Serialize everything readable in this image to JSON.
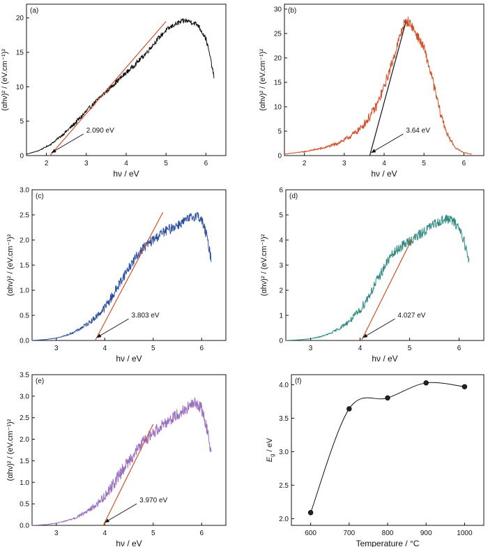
{
  "chart_data": [
    {
      "panel": "(a)",
      "type": "line",
      "xlabel": "hν / eV",
      "ylabel": "(αhν)² / (eV.cm⁻¹)²",
      "xlim": [
        1.5,
        6.5
      ],
      "ylim": [
        0,
        22
      ],
      "xticks": [
        2,
        3,
        4,
        5,
        6
      ],
      "yticks": [
        0,
        5,
        10,
        15,
        20
      ],
      "color": "#111111",
      "spectrum": {
        "x": [
          1.5,
          1.8,
          2.1,
          2.4,
          2.7,
          3.0,
          3.3,
          3.6,
          3.9,
          4.2,
          4.5,
          4.8,
          5.0,
          5.2,
          5.4,
          5.5,
          5.6,
          5.8,
          6.0,
          6.1,
          6.2
        ],
        "y": [
          0.2,
          0.7,
          1.6,
          3.0,
          4.6,
          6.4,
          8.2,
          9.9,
          11.5,
          13.1,
          14.9,
          17.0,
          18.2,
          19.0,
          19.5,
          19.6,
          19.5,
          19.0,
          17.0,
          14.5,
          11.5
        ],
        "noise": 0.35
      },
      "fit": {
        "x": [
          2.09,
          5.0
        ],
        "y": [
          0,
          19.5
        ],
        "color": "#d2502a"
      },
      "annotation": {
        "label": "2.090 eV",
        "value": 2.09
      }
    },
    {
      "panel": "(b)",
      "type": "line",
      "xlabel": "hν / eV",
      "ylabel": "(αhν)² / (eV.cm⁻¹)²",
      "xlim": [
        1.5,
        6.5
      ],
      "ylim": [
        0,
        31
      ],
      "xticks": [
        2,
        3,
        4,
        5,
        6
      ],
      "yticks": [
        0,
        5,
        10,
        15,
        20,
        25,
        30
      ],
      "color": "#d2502a",
      "spectrum": {
        "x": [
          1.5,
          2.0,
          2.5,
          2.8,
          3.0,
          3.2,
          3.4,
          3.6,
          3.8,
          4.0,
          4.2,
          4.4,
          4.5,
          4.6,
          4.7,
          4.8,
          5.0,
          5.2,
          5.4,
          5.6,
          5.8,
          6.0,
          6.2
        ],
        "y": [
          0.3,
          0.8,
          1.6,
          2.4,
          3.2,
          4.2,
          5.5,
          7.5,
          10.0,
          14.0,
          19.0,
          24.5,
          27.0,
          27.5,
          26.5,
          25.0,
          22.0,
          16.0,
          9.0,
          4.0,
          1.5,
          0.6,
          0.3
        ],
        "noise": 1.0
      },
      "fit": {
        "x": [
          3.64,
          4.55
        ],
        "y": [
          0,
          27.5
        ],
        "color": "#111111"
      },
      "annotation": {
        "label": "3.64 eV",
        "value": 3.64
      }
    },
    {
      "panel": "(c)",
      "type": "line",
      "xlabel": "hν / eV",
      "ylabel": "(αhν)² / (eV.cm⁻¹)²",
      "xlim": [
        2.5,
        6.5
      ],
      "ylim": [
        0,
        3.0
      ],
      "xticks": [
        3,
        4,
        5,
        6
      ],
      "yticks": [
        0.0,
        0.5,
        1.0,
        1.5,
        2.0,
        2.5,
        3.0
      ],
      "color": "#2d4fa0",
      "spectrum": {
        "x": [
          2.5,
          2.8,
          3.0,
          3.2,
          3.4,
          3.6,
          3.8,
          4.0,
          4.2,
          4.4,
          4.6,
          4.8,
          5.0,
          5.2,
          5.4,
          5.6,
          5.8,
          5.9,
          6.0,
          6.1,
          6.2
        ],
        "y": [
          0.0,
          0.02,
          0.05,
          0.1,
          0.18,
          0.3,
          0.45,
          0.65,
          0.95,
          1.3,
          1.6,
          1.85,
          2.0,
          2.15,
          2.25,
          2.35,
          2.45,
          2.5,
          2.4,
          2.1,
          1.6
        ],
        "noise": 0.1
      },
      "fit": {
        "x": [
          3.803,
          5.2
        ],
        "y": [
          0,
          2.55
        ],
        "color": "#d2502a"
      },
      "annotation": {
        "label": "3.803 eV",
        "value": 3.803
      }
    },
    {
      "panel": "(d)",
      "type": "line",
      "xlabel": "hν / eV",
      "ylabel": "(αhν)² / (eV.cm⁻¹)²",
      "xlim": [
        2.5,
        6.5
      ],
      "ylim": [
        0,
        6
      ],
      "xticks": [
        3,
        4,
        5,
        6
      ],
      "yticks": [
        0,
        1,
        2,
        3,
        4,
        5,
        6
      ],
      "color": "#2e8a80",
      "spectrum": {
        "x": [
          2.5,
          2.8,
          3.0,
          3.2,
          3.4,
          3.6,
          3.8,
          4.0,
          4.2,
          4.4,
          4.6,
          4.8,
          5.0,
          5.2,
          5.4,
          5.6,
          5.8,
          5.9,
          6.0,
          6.1,
          6.2
        ],
        "y": [
          0.0,
          0.03,
          0.07,
          0.15,
          0.28,
          0.5,
          0.8,
          1.2,
          1.85,
          2.6,
          3.3,
          3.7,
          3.95,
          4.2,
          4.5,
          4.75,
          4.85,
          4.7,
          4.5,
          4.0,
          3.1
        ],
        "noise": 0.2
      },
      "fit": {
        "x": [
          4.027,
          5.05
        ],
        "y": [
          0,
          4.05
        ],
        "color": "#d2502a"
      },
      "annotation": {
        "label": "4.027 eV",
        "value": 4.027
      }
    },
    {
      "panel": "(e)",
      "type": "line",
      "xlabel": "hν / eV",
      "ylabel": "(αhν)² / (eV.cm⁻¹)²",
      "xlim": [
        2.5,
        6.5
      ],
      "ylim": [
        0,
        3.5
      ],
      "xticks": [
        3,
        4,
        5,
        6
      ],
      "yticks": [
        0.0,
        0.5,
        1.0,
        1.5,
        2.0,
        2.5,
        3.0,
        3.5
      ],
      "color": "#9b6fc0",
      "spectrum": {
        "x": [
          2.5,
          2.8,
          3.0,
          3.2,
          3.4,
          3.6,
          3.8,
          4.0,
          4.2,
          4.4,
          4.6,
          4.8,
          5.0,
          5.2,
          5.4,
          5.6,
          5.8,
          5.9,
          6.0,
          6.1,
          6.2
        ],
        "y": [
          0.0,
          0.02,
          0.05,
          0.1,
          0.18,
          0.3,
          0.45,
          0.68,
          1.0,
          1.35,
          1.65,
          1.95,
          2.15,
          2.35,
          2.5,
          2.65,
          2.8,
          2.85,
          2.7,
          2.3,
          1.7
        ],
        "noise": 0.14
      },
      "fit": {
        "x": [
          3.97,
          5.0
        ],
        "y": [
          0,
          2.35
        ],
        "color": "#d2502a"
      },
      "annotation": {
        "label": "3.970 eV",
        "value": 3.97
      }
    },
    {
      "panel": "(f)",
      "type": "scatter",
      "xlabel": "Temperature / °C",
      "ylabel": "Eg / eV",
      "xlim": [
        550,
        1050
      ],
      "ylim": [
        1.9,
        4.15
      ],
      "xticks": [
        600,
        700,
        800,
        900,
        1000
      ],
      "yticks": [
        2.0,
        2.5,
        3.0,
        3.5,
        4.0
      ],
      "x": [
        600,
        700,
        800,
        900,
        1000
      ],
      "y": [
        2.09,
        3.64,
        3.803,
        4.027,
        3.97
      ]
    }
  ]
}
